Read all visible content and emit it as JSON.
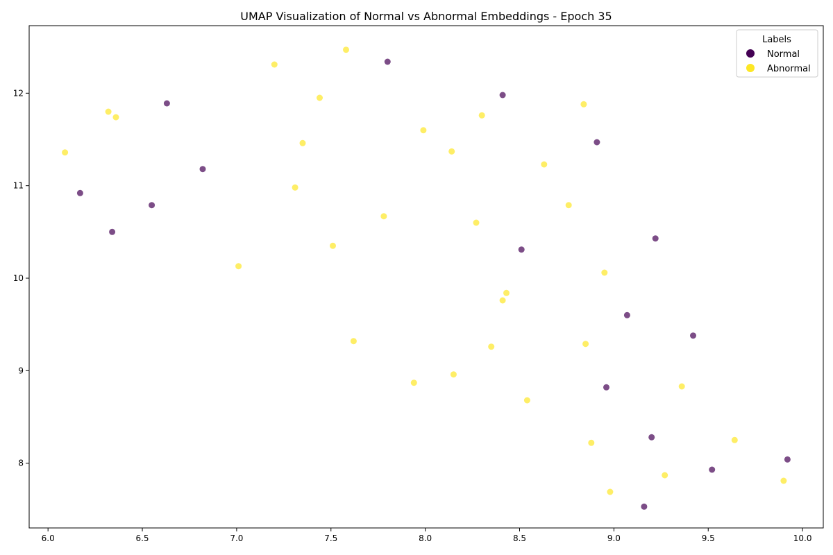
{
  "chart_data": {
    "type": "scatter",
    "title": "UMAP Visualization of Normal vs Abnormal Embeddings - Epoch 35",
    "xlabel": "",
    "ylabel": "",
    "xlim": [
      5.9,
      10.11
    ],
    "ylim": [
      7.3,
      12.73
    ],
    "x_ticks": [
      "6.0",
      "6.5",
      "7.0",
      "7.5",
      "8.0",
      "8.5",
      "9.0",
      "9.5",
      "10.0"
    ],
    "y_ticks": [
      "8",
      "9",
      "10",
      "11",
      "12"
    ],
    "grid": false,
    "legend": {
      "title": "Labels",
      "placement": "top-right",
      "entries": [
        "Normal",
        "Abnormal"
      ]
    },
    "series": [
      {
        "name": "Normal",
        "color": "#440154",
        "points": [
          [
            7.8,
            12.34
          ],
          [
            8.41,
            11.98
          ],
          [
            6.63,
            11.89
          ],
          [
            8.91,
            11.47
          ],
          [
            6.82,
            11.18
          ],
          [
            6.17,
            10.92
          ],
          [
            6.55,
            10.79
          ],
          [
            6.34,
            10.5
          ],
          [
            9.22,
            10.43
          ],
          [
            8.51,
            10.31
          ],
          [
            9.07,
            9.6
          ],
          [
            9.42,
            9.38
          ],
          [
            8.96,
            8.82
          ],
          [
            9.2,
            8.28
          ],
          [
            9.92,
            8.04
          ],
          [
            9.52,
            7.93
          ],
          [
            9.16,
            7.53
          ]
        ]
      },
      {
        "name": "Abnormal",
        "color": "#fde725",
        "points": [
          [
            7.58,
            12.47
          ],
          [
            7.2,
            12.31
          ],
          [
            7.44,
            11.95
          ],
          [
            8.84,
            11.88
          ],
          [
            6.32,
            11.8
          ],
          [
            6.36,
            11.74
          ],
          [
            8.3,
            11.76
          ],
          [
            7.99,
            11.6
          ],
          [
            7.35,
            11.46
          ],
          [
            8.14,
            11.37
          ],
          [
            6.09,
            11.36
          ],
          [
            8.63,
            11.23
          ],
          [
            7.31,
            10.98
          ],
          [
            8.76,
            10.79
          ],
          [
            7.78,
            10.67
          ],
          [
            8.27,
            10.6
          ],
          [
            7.51,
            10.35
          ],
          [
            7.01,
            10.13
          ],
          [
            8.95,
            10.06
          ],
          [
            8.43,
            9.84
          ],
          [
            8.41,
            9.76
          ],
          [
            7.62,
            9.32
          ],
          [
            8.85,
            9.29
          ],
          [
            8.35,
            9.26
          ],
          [
            7.94,
            8.87
          ],
          [
            8.15,
            8.96
          ],
          [
            9.36,
            8.83
          ],
          [
            8.54,
            8.68
          ],
          [
            9.64,
            8.25
          ],
          [
            8.88,
            8.22
          ],
          [
            9.27,
            7.87
          ],
          [
            9.9,
            7.81
          ],
          [
            8.98,
            7.69
          ]
        ]
      }
    ]
  }
}
